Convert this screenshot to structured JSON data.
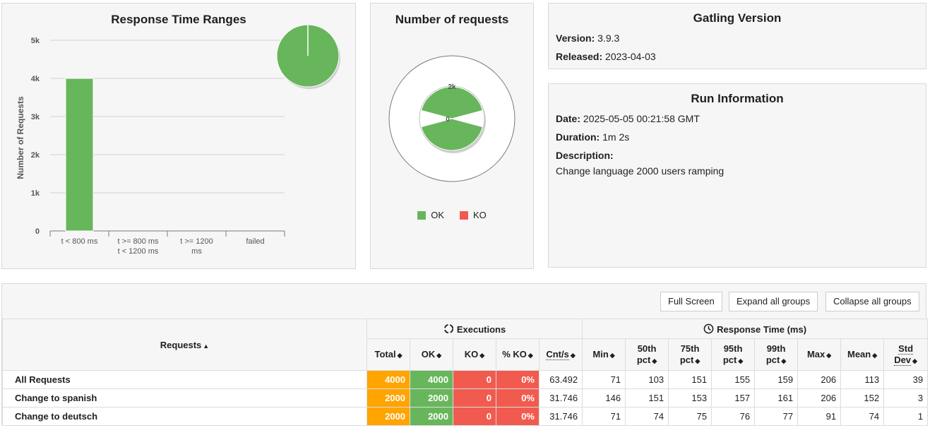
{
  "colors": {
    "ok": "#68b65c",
    "ko": "#f15b4f",
    "total": "#ffa400"
  },
  "response_time_ranges": {
    "title": "Response Time Ranges",
    "chart_data": {
      "type": "bar",
      "categories": [
        [
          "t < 800 ms"
        ],
        [
          "t >= 800 ms",
          "t < 1200 ms"
        ],
        [
          "t >= 1200",
          "ms"
        ],
        [
          "failed"
        ]
      ],
      "values": [
        4000,
        0,
        0,
        0
      ],
      "ylabel": "Number of Requests",
      "yticks": [
        "0",
        "1k",
        "2k",
        "3k",
        "4k",
        "5k"
      ],
      "ylim": [
        0,
        5000
      ],
      "pie_values": [
        4000,
        0
      ]
    }
  },
  "number_of_requests": {
    "title": "Number of requests",
    "chart_data": {
      "type": "pie",
      "tick_labels": [
        "2k",
        "0"
      ],
      "values": [
        4000,
        0
      ],
      "legend": [
        "OK",
        "KO"
      ]
    }
  },
  "gatling_version": {
    "title": "Gatling Version",
    "version_label": "Version:",
    "version": "3.9.3",
    "released_label": "Released:",
    "released": "2023-04-03"
  },
  "run_information": {
    "title": "Run Information",
    "date_label": "Date:",
    "date": "2025-05-05 00:21:58 GMT",
    "duration_label": "Duration:",
    "duration": "1m 2s",
    "description_label": "Description:",
    "description": "Change language 2000 users ramping"
  },
  "toolbar": {
    "full_screen": "Full Screen",
    "expand": "Expand all groups",
    "collapse": "Collapse all groups"
  },
  "table": {
    "requests_header": "Requests",
    "executions_header": "Executions",
    "response_time_header": "Response Time (ms)",
    "columns": {
      "total": "Total",
      "ok": "OK",
      "ko": "KO",
      "pct_ko": "% KO",
      "cnt_s": "Cnt/s",
      "min": "Min",
      "p50a": "50th",
      "p50b": "pct",
      "p75a": "75th",
      "p75b": "pct",
      "p95a": "95th",
      "p95b": "pct",
      "p99a": "99th",
      "p99b": "pct",
      "max": "Max",
      "mean": "Mean",
      "std_a": "Std",
      "std_b": "Dev"
    },
    "rows": [
      {
        "name": "All Requests",
        "total": "4000",
        "ok": "4000",
        "ko": "0",
        "pct_ko": "0%",
        "cnt_s": "63.492",
        "min": "71",
        "p50": "103",
        "p75": "151",
        "p95": "155",
        "p99": "159",
        "max": "206",
        "mean": "113",
        "std": "39"
      },
      {
        "name": "Change to spanish",
        "total": "2000",
        "ok": "2000",
        "ko": "0",
        "pct_ko": "0%",
        "cnt_s": "31.746",
        "min": "146",
        "p50": "151",
        "p75": "153",
        "p95": "157",
        "p99": "161",
        "max": "206",
        "mean": "152",
        "std": "3"
      },
      {
        "name": "Change to deutsch",
        "total": "2000",
        "ok": "2000",
        "ko": "0",
        "pct_ko": "0%",
        "cnt_s": "31.746",
        "min": "71",
        "p50": "74",
        "p75": "75",
        "p95": "76",
        "p99": "77",
        "max": "91",
        "mean": "74",
        "std": "1"
      }
    ]
  }
}
